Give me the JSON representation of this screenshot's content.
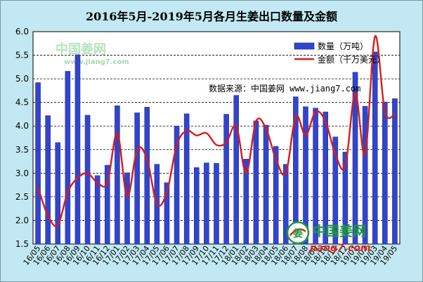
{
  "chart_data": {
    "type": "bar",
    "title": "2016年5月-2019年5月各月生姜出口数量及金额",
    "xlabel": "",
    "ylabel": "",
    "ylim": [
      1.5,
      6.0
    ],
    "yticks": [
      "1.5",
      "2.0",
      "2.5",
      "3.0",
      "3.5",
      "4.0",
      "4.5",
      "5.0",
      "5.5",
      "6.0"
    ],
    "grid": "horizontal",
    "legend_placement": "top-right",
    "categories": [
      "16/05",
      "16/06",
      "16/07",
      "16/08",
      "16/09",
      "16/10",
      "16/11",
      "16/12",
      "17/01",
      "17/02",
      "17/03",
      "17/04",
      "17/05",
      "17/06",
      "17/07",
      "17/08",
      "17/09",
      "17/10",
      "17/11",
      "17/12",
      "18/01",
      "18/02",
      "18/03",
      "18/04",
      "18/05",
      "18/06",
      "18/07",
      "18/08",
      "18/09",
      "18/10",
      "18/11",
      "18/12",
      "19/01",
      "19/02",
      "19/03",
      "19/04",
      "19/05"
    ],
    "series": [
      {
        "name": "数量（万吨）",
        "kind": "bar",
        "color": "#3344cc",
        "values": [
          4.92,
          4.22,
          3.65,
          5.16,
          5.51,
          4.23,
          2.95,
          3.17,
          4.43,
          3.01,
          4.28,
          4.4,
          3.19,
          2.8,
          4.0,
          4.26,
          3.12,
          3.22,
          3.21,
          4.25,
          4.65,
          3.3,
          4.11,
          4.02,
          3.57,
          3.19,
          4.62,
          4.41,
          4.38,
          4.3,
          3.77,
          3.45,
          5.14,
          4.42,
          5.57,
          4.51,
          4.58
        ]
      },
      {
        "name": "金额（千万美元）",
        "kind": "line",
        "color": "#d81c1c",
        "values": [
          2.7,
          2.1,
          1.9,
          2.6,
          2.9,
          3.0,
          2.8,
          2.8,
          3.85,
          2.5,
          3.5,
          3.3,
          2.35,
          2.6,
          3.6,
          3.9,
          3.8,
          3.85,
          3.6,
          3.65,
          4.0,
          3.0,
          4.1,
          3.95,
          3.3,
          3.0,
          4.2,
          3.8,
          4.3,
          4.1,
          3.4,
          3.15,
          4.7,
          3.4,
          5.9,
          4.3,
          4.25
        ]
      }
    ]
  },
  "source_text": "数据来源：中国姜网 www.jiang7.com",
  "watermarks": {
    "brand": "中国姜网",
    "url": "www.jiang7.com",
    "url_short": "jiang7.com",
    "logo_glyph": "姜",
    "brand_color": "#1d9a3a",
    "url_color": "#e2231a"
  }
}
